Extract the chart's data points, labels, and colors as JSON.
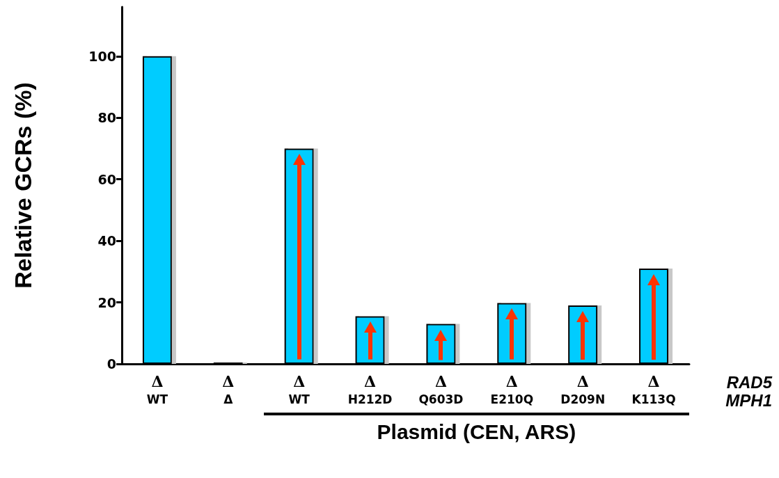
{
  "chart_data": {
    "type": "bar",
    "ylabel": "Relative GCRs (%)",
    "xlabel": "Plasmid (CEN, ARS)",
    "categories": [
      "Δ\nWT",
      "Δ\nΔ",
      "Δ\nWT",
      "Δ\nH212D",
      "Δ\nQ603D",
      "Δ\nE210Q",
      "Δ\nD209N",
      "Δ\nK113Q"
    ],
    "values": [
      100,
      0.5,
      70,
      15.5,
      13,
      19.8,
      19,
      31
    ],
    "color": "#00ccff",
    "ylim": [
      0,
      116
    ],
    "yticks": [
      0,
      20,
      40,
      60,
      80,
      100
    ],
    "grid": false,
    "annotations": [
      "RAD5",
      "MPH1"
    ]
  }
}
